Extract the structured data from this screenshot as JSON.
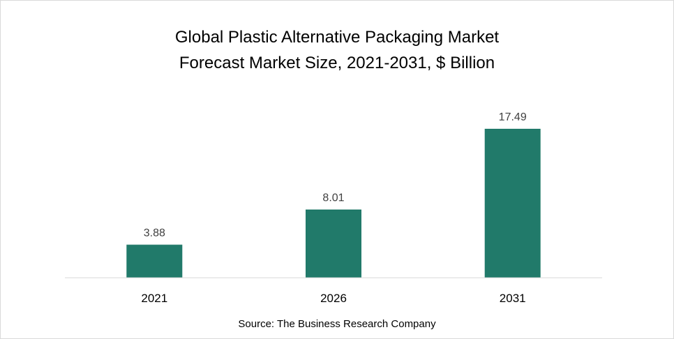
{
  "chart_data": {
    "type": "bar",
    "title": "Global Plastic Alternative Packaging Market",
    "subtitle": "Forecast Market Size, 2021-2031, $ Billion",
    "categories": [
      "2021",
      "2026",
      "2031"
    ],
    "values": [
      3.88,
      8.01,
      17.49
    ],
    "data_labels": [
      "3.88",
      "8.01",
      "17.49"
    ],
    "ylim": [
      0,
      20
    ],
    "grid": false,
    "bar_color": "#217A6A",
    "source": "Source: The Business Research Company"
  }
}
